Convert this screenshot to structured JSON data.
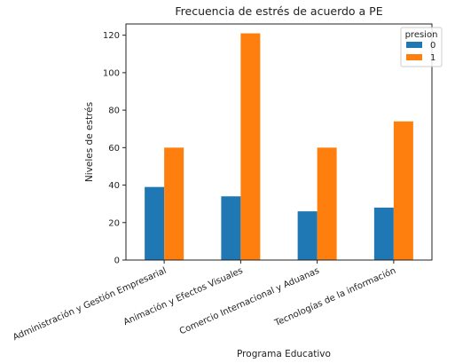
{
  "chart_data": {
    "type": "bar",
    "title": "Frecuencia de estrés de acuerdo a PE",
    "xlabel": "Programa Educativo",
    "ylabel": "Niveles de estrés",
    "categories": [
      "Administración y Gestión Empresarial",
      "Animación y Efectos Visuales",
      "Comercio Internacional y Aduanas",
      "Tecnologías de la información"
    ],
    "series": [
      {
        "name": "0",
        "color": "#1f77b4",
        "values": [
          39,
          34,
          26,
          28
        ]
      },
      {
        "name": "1",
        "color": "#ff7f0e",
        "values": [
          60,
          121,
          60,
          74
        ]
      }
    ],
    "legend_title": "presion",
    "legend_position": "top-right",
    "ylim": [
      0,
      126
    ],
    "yticks": [
      0,
      20,
      40,
      60,
      80,
      100,
      120
    ],
    "grid": false
  }
}
